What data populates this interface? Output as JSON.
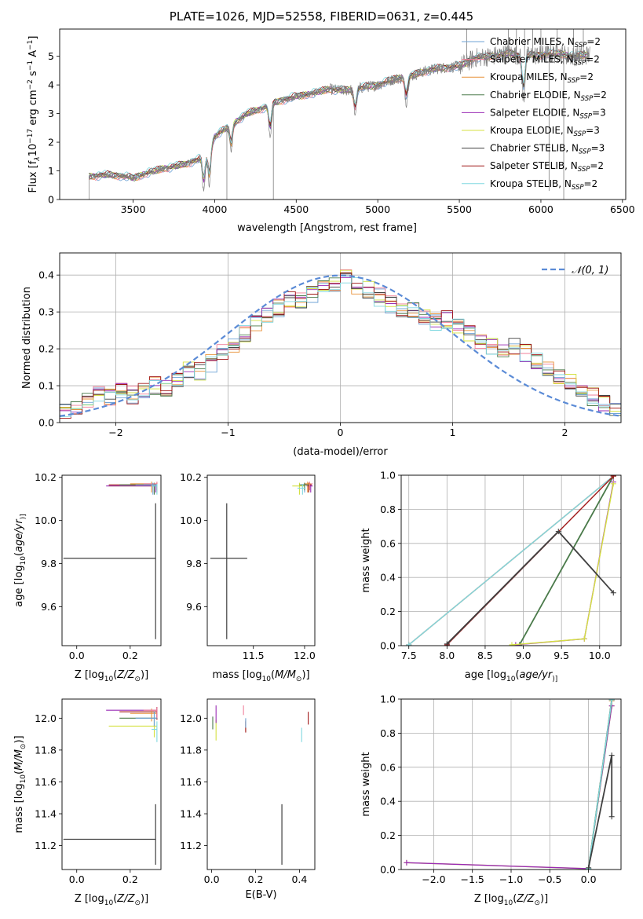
{
  "figure": {
    "title": "PLATE=1026, MJD=52558, FIBERID=0631, z=0.445"
  },
  "colors": {
    "Chabrier MILES": "#6fa3d6",
    "Salpeter MILES": "#f07f9a",
    "Kroupa MILES": "#e8923a",
    "Chabrier ELODIE": "#4a7a4a",
    "Salpeter ELODIE": "#9a2bb5",
    "Kroupa ELODIE": "#d4e040",
    "Chabrier STELIB": "#404040",
    "Salpeter STELIB": "#a01818",
    "Kroupa STELIB": "#80d8e0",
    "normal": "#5b8bd6",
    "data": "#7f7f7f"
  },
  "chart_data": [
    {
      "id": "spectrum",
      "type": "line",
      "xlabel": "wavelength [Angstrom, rest frame]",
      "ylabel_parts": [
        "Flux [f",
        "λ",
        "10",
        "−17",
        " erg cm",
        "−2",
        " s",
        "−1",
        " A",
        "−1",
        "]"
      ],
      "xlim": [
        3050,
        6520
      ],
      "ylim": [
        0,
        5.95
      ],
      "xticks": [
        3500,
        4000,
        4500,
        5000,
        5500,
        6000,
        6500
      ],
      "yticks": [
        0,
        1,
        2,
        3,
        4,
        5
      ],
      "grid": false,
      "legend_position": "lower-right",
      "legend": [
        {
          "name": "Chabrier MILES",
          "nssp": "2"
        },
        {
          "name": "Salpeter MILES",
          "nssp": "2"
        },
        {
          "name": "Kroupa MILES",
          "nssp": "2"
        },
        {
          "name": "Chabrier ELODIE",
          "nssp": "2"
        },
        {
          "name": "Salpeter ELODIE",
          "nssp": "3"
        },
        {
          "name": "Kroupa ELODIE",
          "nssp": "3"
        },
        {
          "name": "Chabrier STELIB",
          "nssp": "3"
        },
        {
          "name": "Salpeter STELIB",
          "nssp": "2"
        },
        {
          "name": "Kroupa STELIB",
          "nssp": "2"
        }
      ],
      "continuum": {
        "x": [
          3230,
          3300,
          3400,
          3500,
          3600,
          3700,
          3800,
          3900,
          3950,
          4000,
          4100,
          4200,
          4300,
          4400,
          4500,
          4600,
          4700,
          4800,
          4900,
          5000,
          5100,
          5200,
          5300,
          5400,
          5500,
          5600,
          5700,
          5800,
          5900,
          6000,
          6100,
          6200,
          6300
        ],
        "y": [
          0.8,
          0.85,
          0.85,
          0.75,
          0.95,
          1.1,
          1.2,
          1.4,
          1.6,
          2.2,
          2.6,
          3.0,
          3.2,
          3.45,
          3.6,
          3.7,
          3.85,
          3.8,
          3.9,
          4.0,
          4.2,
          4.3,
          4.5,
          4.6,
          4.65,
          4.95,
          5.0,
          5.1,
          5.0,
          5.05,
          5.1,
          5.0,
          5.05
        ]
      },
      "features": [
        {
          "x": 3933,
          "y": 0.3
        },
        {
          "x": 3968,
          "y": 0.5
        },
        {
          "x": 4101,
          "y": 1.7
        },
        {
          "x": 4340,
          "y": 2.2
        },
        {
          "x": 4861,
          "y": 3.0
        },
        {
          "x": 5175,
          "y": 3.4
        },
        {
          "x": 5893,
          "y": 3.5
        }
      ],
      "spikes": [
        {
          "x": 4075,
          "y": 0.0
        },
        {
          "x": 4360,
          "y": 0.0
        },
        {
          "x": 5545,
          "y": 5.95
        },
        {
          "x": 5800,
          "y": 5.95
        },
        {
          "x": 5850,
          "y": 5.95
        },
        {
          "x": 5900,
          "y": 5.95
        },
        {
          "x": 5950,
          "y": 5.95
        },
        {
          "x": 6000,
          "y": 5.95
        },
        {
          "x": 6050,
          "y": 0.3
        },
        {
          "x": 6100,
          "y": 5.95
        },
        {
          "x": 6140,
          "y": 0.0
        },
        {
          "x": 6200,
          "y": 5.95
        },
        {
          "x": 6260,
          "y": 5.95
        }
      ]
    },
    {
      "id": "residuals",
      "type": "histogram",
      "xlabel": "(data-model)/error",
      "ylabel": "Normed distribution",
      "xlim": [
        -2.5,
        2.5
      ],
      "ylim": [
        0,
        0.46
      ],
      "xticks": [
        -2,
        -1,
        0,
        1,
        2
      ],
      "yticks": [
        0.0,
        0.1,
        0.2,
        0.3,
        0.4
      ],
      "grid": true,
      "legend_position": "upper-right",
      "normal_legend_math": "𝒩(0, 1)",
      "bins": [
        -2.5,
        -2.4,
        -2.3,
        -2.2,
        -2.1,
        -2.0,
        -1.9,
        -1.8,
        -1.7,
        -1.6,
        -1.5,
        -1.4,
        -1.3,
        -1.2,
        -1.1,
        -1.0,
        -0.9,
        -0.8,
        -0.7,
        -0.6,
        -0.5,
        -0.4,
        -0.3,
        -0.2,
        -0.1,
        0.0,
        0.1,
        0.2,
        0.3,
        0.4,
        0.5,
        0.6,
        0.7,
        0.8,
        0.9,
        1.0,
        1.1,
        1.2,
        1.3,
        1.4,
        1.5,
        1.6,
        1.7,
        1.8,
        1.9,
        2.0,
        2.1,
        2.2,
        2.3,
        2.4,
        2.5
      ],
      "base_heights": [
        0.035,
        0.04,
        0.06,
        0.08,
        0.07,
        0.09,
        0.075,
        0.09,
        0.1,
        0.09,
        0.12,
        0.14,
        0.14,
        0.16,
        0.19,
        0.21,
        0.24,
        0.27,
        0.29,
        0.31,
        0.33,
        0.33,
        0.35,
        0.37,
        0.38,
        0.39,
        0.37,
        0.36,
        0.34,
        0.32,
        0.31,
        0.3,
        0.29,
        0.27,
        0.28,
        0.26,
        0.24,
        0.22,
        0.21,
        0.2,
        0.21,
        0.19,
        0.17,
        0.15,
        0.13,
        0.11,
        0.09,
        0.07,
        0.05,
        0.04
      ],
      "series_order": [
        "Chabrier MILES",
        "Salpeter MILES",
        "Kroupa MILES",
        "Chabrier ELODIE",
        "Salpeter ELODIE",
        "Kroupa ELODIE",
        "Chabrier STELIB",
        "Salpeter STELIB",
        "Kroupa STELIB"
      ]
    },
    {
      "id": "z-age",
      "type": "errorbar",
      "xlabel_parts": [
        "Z [log",
        "10",
        "(",
        "Z/Z",
        "⊙",
        ")]"
      ],
      "ylabel_parts": [
        "age  [log",
        "10",
        "(",
        "age/yr",
        ")]"
      ],
      "xlim": [
        -0.055,
        0.315
      ],
      "ylim": [
        9.42,
        10.21
      ],
      "xticks": [
        0.0,
        0.2
      ],
      "yticks": [
        9.6,
        9.8,
        10.0,
        10.2
      ],
      "grid": false,
      "points": [
        {
          "s": "Chabrier STELIB",
          "x": 0.295,
          "y": 9.825,
          "xlo": -0.05,
          "xhi": 0.295,
          "ylo": 9.45,
          "yhi": 10.08
        },
        {
          "s": "Kroupa ELODIE",
          "x": 0.29,
          "y": 10.16,
          "xlo": 0.12,
          "xhi": 0.3,
          "ylo": 10.13,
          "yhi": 10.17
        },
        {
          "s": "Salpeter STELIB",
          "x": 0.3,
          "y": 10.165,
          "xlo": 0.12,
          "xhi": 0.3,
          "ylo": 10.14,
          "yhi": 10.175
        },
        {
          "s": "Salpeter ELODIE",
          "x": 0.295,
          "y": 10.16,
          "xlo": 0.11,
          "xhi": 0.3,
          "ylo": 10.13,
          "yhi": 10.17
        },
        {
          "s": "Chabrier ELODIE",
          "x": 0.29,
          "y": 10.165,
          "xlo": 0.16,
          "xhi": 0.3,
          "ylo": 10.12,
          "yhi": 10.175
        },
        {
          "s": "Kroupa MILES",
          "x": 0.28,
          "y": 10.17,
          "xlo": 0.2,
          "xhi": 0.3,
          "ylo": 10.13,
          "yhi": 10.18
        },
        {
          "s": "Salpeter MILES",
          "x": 0.3,
          "y": 10.17,
          "xlo": 0.25,
          "xhi": 0.3,
          "ylo": 10.13,
          "yhi": 10.18
        },
        {
          "s": "Chabrier MILES",
          "x": 0.285,
          "y": 10.165,
          "xlo": 0.22,
          "xhi": 0.3,
          "ylo": 10.12,
          "yhi": 10.175
        },
        {
          "s": "Kroupa STELIB",
          "x": 0.3,
          "y": 10.16,
          "xlo": 0.28,
          "xhi": 0.3,
          "ylo": 10.12,
          "yhi": 10.17
        }
      ]
    },
    {
      "id": "mass-age",
      "type": "errorbar",
      "xlabel_parts": [
        "mass [log",
        "10",
        "(",
        "M/M",
        "⊙",
        ")]"
      ],
      "xlim": [
        11.05,
        12.1
      ],
      "ylim": [
        9.42,
        10.21
      ],
      "xticks": [
        11.5,
        12.0
      ],
      "yticks": [
        9.6,
        9.8,
        10.0,
        10.2
      ],
      "grid": false,
      "points": [
        {
          "s": "Chabrier STELIB",
          "x": 11.24,
          "y": 9.825,
          "xlo": 11.08,
          "xhi": 11.44,
          "ylo": 9.45,
          "yhi": 10.08
        },
        {
          "s": "Kroupa ELODIE",
          "x": 11.95,
          "y": 10.16,
          "xlo": 11.88,
          "xhi": 12.0,
          "ylo": 10.12,
          "yhi": 10.175
        },
        {
          "s": "Salpeter ELODIE",
          "x": 12.06,
          "y": 10.16,
          "xlo": 12.02,
          "xhi": 12.08,
          "ylo": 10.13,
          "yhi": 10.17
        },
        {
          "s": "Salpeter STELIB",
          "x": 12.04,
          "y": 10.165,
          "xlo": 12.0,
          "xhi": 12.07,
          "ylo": 10.13,
          "yhi": 10.175
        },
        {
          "s": "Chabrier MILES",
          "x": 12.0,
          "y": 10.165,
          "xlo": 11.96,
          "xhi": 12.04,
          "ylo": 10.13,
          "yhi": 10.175
        },
        {
          "s": "Salpeter MILES",
          "x": 12.05,
          "y": 10.17,
          "xlo": 12.01,
          "xhi": 12.08,
          "ylo": 10.14,
          "yhi": 10.18
        },
        {
          "s": "Kroupa MILES",
          "x": 12.03,
          "y": 10.17,
          "xlo": 12.0,
          "xhi": 12.06,
          "ylo": 10.13,
          "yhi": 10.18
        },
        {
          "s": "Chabrier ELODIE",
          "x": 12.0,
          "y": 10.165,
          "xlo": 11.95,
          "xhi": 12.04,
          "ylo": 10.14,
          "yhi": 10.175
        },
        {
          "s": "Kroupa STELIB",
          "x": 11.98,
          "y": 10.15,
          "xlo": 11.93,
          "xhi": 12.01,
          "ylo": 10.12,
          "yhi": 10.17
        }
      ]
    },
    {
      "id": "age-weight",
      "type": "line",
      "xlabel_parts": [
        "age  [log",
        "10",
        "(",
        "age/yr",
        ")]"
      ],
      "ylabel": "mass weight",
      "xlim": [
        7.4,
        10.28
      ],
      "ylim": [
        0,
        1.0
      ],
      "xticks": [
        7.5,
        8.0,
        8.5,
        9.0,
        9.5,
        10.0
      ],
      "yticks": [
        0.0,
        0.2,
        0.4,
        0.6,
        0.8,
        1.0
      ],
      "grid": true,
      "lines": [
        {
          "s": "Chabrier MILES",
          "x": [
            7.5,
            10.18
          ],
          "y": [
            0.005,
            0.995
          ]
        },
        {
          "s": "Salpeter MILES",
          "x": [
            7.5,
            10.18
          ],
          "y": [
            0.005,
            0.995
          ]
        },
        {
          "s": "Kroupa MILES",
          "x": [
            7.5,
            10.18
          ],
          "y": [
            0.005,
            0.995
          ]
        },
        {
          "s": "Kroupa STELIB",
          "x": [
            7.5,
            10.18
          ],
          "y": [
            0.005,
            0.995
          ]
        },
        {
          "s": "Chabrier ELODIE",
          "x": [
            8.95,
            10.18
          ],
          "y": [
            0.005,
            0.995
          ]
        },
        {
          "s": "Salpeter ELODIE",
          "x": [
            8.9,
            9.8,
            10.18
          ],
          "y": [
            0.005,
            0.04,
            0.96
          ]
        },
        {
          "s": "Kroupa ELODIE",
          "x": [
            8.85,
            9.8,
            10.18
          ],
          "y": [
            0.005,
            0.04,
            0.95
          ]
        },
        {
          "s": "Salpeter STELIB",
          "x": [
            8.0,
            10.18
          ],
          "y": [
            0.005,
            0.995
          ]
        },
        {
          "s": "Chabrier STELIB",
          "x": [
            8.0,
            9.46,
            10.18
          ],
          "y": [
            0.01,
            0.67,
            0.31
          ]
        }
      ]
    },
    {
      "id": "z-mass",
      "type": "errorbar",
      "xlabel_parts": [
        "Z [log",
        "10",
        "(",
        "Z/Z",
        "⊙",
        ")]"
      ],
      "ylabel_parts": [
        "mass [log",
        "10",
        "(",
        "M/M",
        "⊙",
        ")]"
      ],
      "xlim": [
        -0.055,
        0.315
      ],
      "ylim": [
        11.05,
        12.12
      ],
      "xticks": [
        0.0,
        0.2
      ],
      "yticks": [
        11.2,
        11.4,
        11.6,
        11.8,
        12.0
      ],
      "grid": false,
      "points": [
        {
          "s": "Chabrier STELIB",
          "x": 0.295,
          "y": 11.24,
          "xlo": -0.05,
          "xhi": 0.295,
          "ylo": 11.08,
          "yhi": 11.46
        },
        {
          "s": "Kroupa ELODIE",
          "x": 0.29,
          "y": 11.95,
          "xlo": 0.12,
          "xhi": 0.3,
          "ylo": 11.88,
          "yhi": 12.0
        },
        {
          "s": "Salpeter ELODIE",
          "x": 0.3,
          "y": 12.05,
          "xlo": 0.11,
          "xhi": 0.3,
          "ylo": 12.0,
          "yhi": 12.07
        },
        {
          "s": "Salpeter STELIB",
          "x": 0.3,
          "y": 12.04,
          "xlo": 0.16,
          "xhi": 0.3,
          "ylo": 11.99,
          "yhi": 12.07
        },
        {
          "s": "Chabrier ELODIE",
          "x": 0.29,
          "y": 12.0,
          "xlo": 0.16,
          "xhi": 0.3,
          "ylo": 11.95,
          "yhi": 12.04
        },
        {
          "s": "Kroupa MILES",
          "x": 0.28,
          "y": 12.03,
          "xlo": 0.2,
          "xhi": 0.3,
          "ylo": 11.98,
          "yhi": 12.06
        },
        {
          "s": "Salpeter MILES",
          "x": 0.3,
          "y": 12.05,
          "xlo": 0.25,
          "xhi": 0.3,
          "ylo": 12.0,
          "yhi": 12.07
        },
        {
          "s": "Chabrier MILES",
          "x": 0.29,
          "y": 12.0,
          "xlo": 0.22,
          "xhi": 0.3,
          "ylo": 11.95,
          "yhi": 12.04
        },
        {
          "s": "Kroupa STELIB",
          "x": 0.3,
          "y": 11.93,
          "xlo": 0.28,
          "xhi": 0.3,
          "ylo": 11.85,
          "yhi": 11.98
        }
      ]
    },
    {
      "id": "ebv-mass",
      "type": "errorbar",
      "xlabel": "E(B-V)",
      "xlim": [
        -0.02,
        0.47
      ],
      "ylim": [
        11.05,
        12.12
      ],
      "xticks": [
        0.0,
        0.2,
        0.4
      ],
      "yticks": [
        11.2,
        11.4,
        11.6,
        11.8,
        12.0
      ],
      "grid": false,
      "points": [
        {
          "s": "Chabrier STELIB",
          "x": 0.32,
          "y": 11.23,
          "ylo": 11.08,
          "yhi": 11.46
        },
        {
          "s": "Kroupa ELODIE",
          "x": 0.02,
          "y": 11.93,
          "ylo": 11.86,
          "yhi": 11.99
        },
        {
          "s": "Salpeter ELODIE",
          "x": 0.02,
          "y": 12.02,
          "ylo": 11.97,
          "yhi": 12.08
        },
        {
          "s": "Chabrier ELODIE",
          "x": 0.005,
          "y": 11.97,
          "ylo": 11.93,
          "yhi": 12.01
        },
        {
          "s": "Salpeter MILES",
          "x": 0.145,
          "y": 12.05,
          "ylo": 12.02,
          "yhi": 12.08
        },
        {
          "s": "Kroupa MILES",
          "x": 0.155,
          "y": 11.96,
          "ylo": 11.92,
          "yhi": 11.99
        },
        {
          "s": "Salpeter STELIB",
          "x": 0.155,
          "y": 11.95,
          "ylo": 11.91,
          "yhi": 11.98
        },
        {
          "s": "Chabrier MILES",
          "x": 0.155,
          "y": 11.98,
          "ylo": 11.94,
          "yhi": 12.0
        },
        {
          "s": "Kroupa STELIB",
          "x": 0.41,
          "y": 11.89,
          "ylo": 11.85,
          "yhi": 11.94
        },
        {
          "s": "Salpeter STELIB",
          "x": 0.44,
          "y": 12.0,
          "ylo": 11.96,
          "yhi": 12.04
        }
      ]
    },
    {
      "id": "z-weight",
      "type": "line",
      "xlabel_parts": [
        "Z [log",
        "10",
        "(",
        "Z/Z",
        "⊙",
        ")]"
      ],
      "ylabel": "mass weight",
      "xlim": [
        -2.42,
        0.42
      ],
      "ylim": [
        0,
        1.0
      ],
      "xticks": [
        -2.0,
        -1.5,
        -1.0,
        -0.5,
        0.0
      ],
      "yticks": [
        0.0,
        0.2,
        0.4,
        0.6,
        0.8,
        1.0
      ],
      "grid": true,
      "lines": [
        {
          "s": "Kroupa ELODIE",
          "x": [
            -2.35,
            0.0,
            0.3
          ],
          "y": [
            0.04,
            0.005,
            0.96
          ]
        },
        {
          "s": "Salpeter ELODIE",
          "x": [
            -2.35,
            0.0,
            0.3
          ],
          "y": [
            0.04,
            0.005,
            0.96
          ]
        },
        {
          "s": "Chabrier MILES",
          "x": [
            0.0,
            0.3
          ],
          "y": [
            0.005,
            0.995
          ]
        },
        {
          "s": "Salpeter MILES",
          "x": [
            0.0,
            0.3
          ],
          "y": [
            0.005,
            0.995
          ]
        },
        {
          "s": "Kroupa MILES",
          "x": [
            0.0,
            0.3
          ],
          "y": [
            0.005,
            0.99
          ]
        },
        {
          "s": "Chabrier ELODIE",
          "x": [
            0.0,
            0.3
          ],
          "y": [
            0.005,
            0.995
          ]
        },
        {
          "s": "Kroupa STELIB",
          "x": [
            0.0,
            0.3
          ],
          "y": [
            0.005,
            0.995
          ]
        },
        {
          "s": "Chabrier STELIB",
          "x": [
            0.0,
            0.3,
            0.3
          ],
          "y": [
            0.01,
            0.67,
            0.31
          ]
        }
      ]
    }
  ]
}
